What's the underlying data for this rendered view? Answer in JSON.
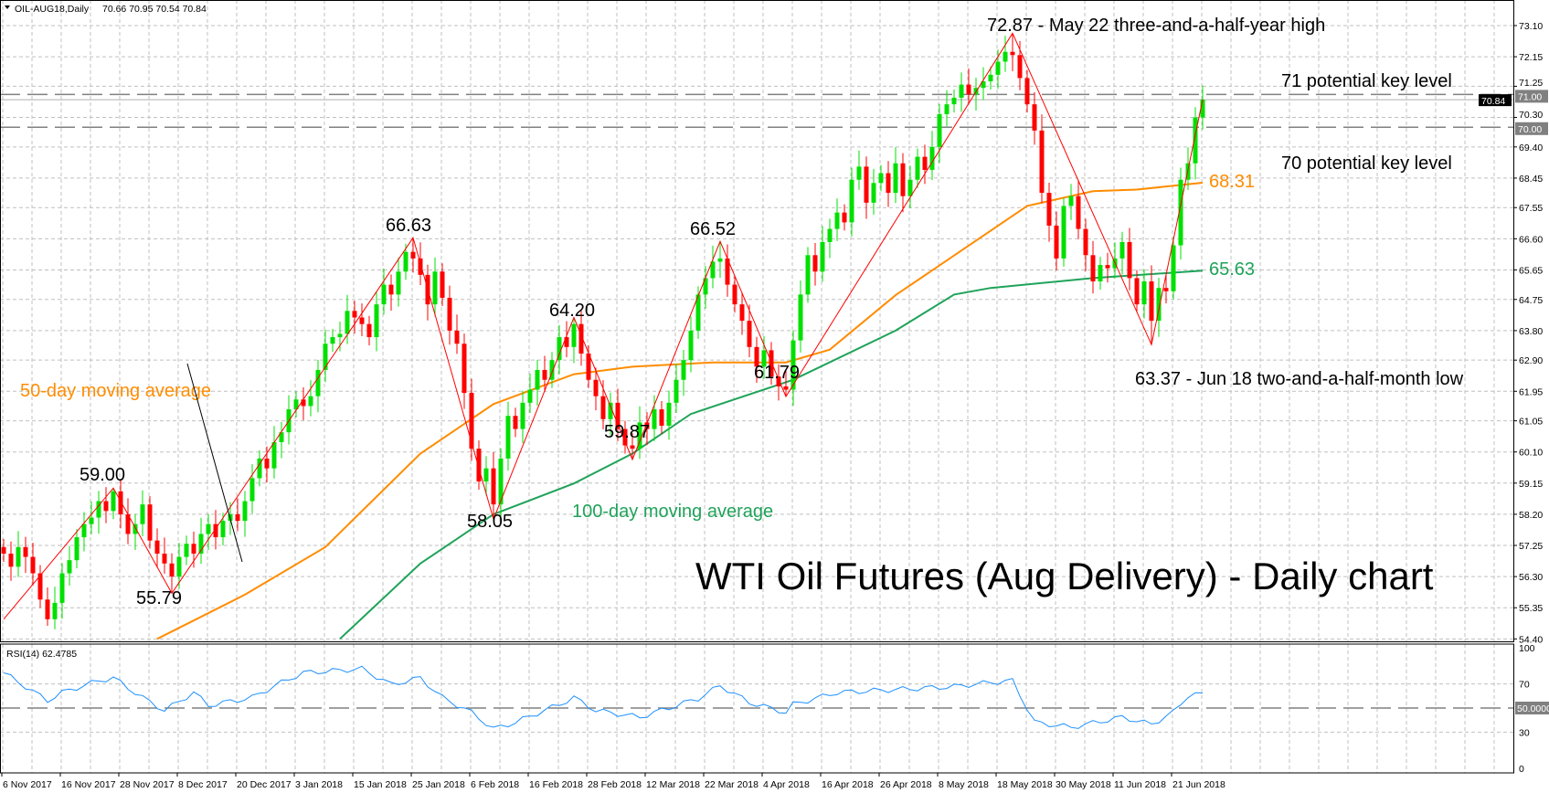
{
  "header": {
    "symbol": "OIL-AUG18,Daily",
    "ohlc": "70.66 70.95 70.54 70.84"
  },
  "colors": {
    "bull": "#00e000",
    "bear": "#ff0000",
    "ma50": "#ff8c00",
    "ma100": "#1fa35a",
    "rsi": "#1e90ff",
    "zigzag": "#ff0000"
  },
  "chart_data": [
    {
      "type": "candlestick",
      "title": "WTI Oil Futures (Aug Delivery) - Daily chart",
      "ylim": [
        54.4,
        73.1
      ],
      "y_ticks": [
        "73.10",
        "72.15",
        "71.25",
        "70.30",
        "69.40",
        "68.45",
        "67.55",
        "66.60",
        "65.65",
        "64.75",
        "63.80",
        "62.90",
        "61.95",
        "61.05",
        "60.10",
        "59.15",
        "58.20",
        "57.25",
        "56.30",
        "55.35",
        "54.40"
      ],
      "x_ticks": [
        "6 Nov 2017",
        "16 Nov 2017",
        "28 Nov 2017",
        "8 Dec 2017",
        "20 Dec 2017",
        "3 Jan 2018",
        "15 Jan 2018",
        "25 Jan 2018",
        "6 Feb 2018",
        "16 Feb 2018",
        "28 Feb 2018",
        "12 Mar 2018",
        "22 Mar 2018",
        "4 Apr 2018",
        "16 Apr 2018",
        "26 Apr 2018",
        "8 May 2018",
        "18 May 2018",
        "30 May 2018",
        "11 Jun 2018",
        "21 Jun 2018"
      ],
      "first_open": 57.2,
      "closes": [
        57.0,
        56.6,
        57.2,
        56.9,
        56.4,
        55.6,
        55.0,
        55.5,
        56.4,
        56.8,
        57.5,
        57.9,
        58.1,
        58.6,
        58.3,
        58.9,
        58.2,
        57.6,
        57.9,
        58.5,
        57.4,
        57.0,
        56.7,
        56.3,
        56.9,
        57.3,
        57.0,
        57.6,
        57.9,
        57.5,
        58.0,
        58.2,
        58.0,
        58.6,
        59.3,
        59.9,
        59.6,
        60.4,
        60.7,
        61.4,
        61.7,
        61.5,
        61.8,
        62.6,
        63.4,
        63.6,
        63.7,
        64.4,
        64.2,
        64.0,
        63.6,
        64.6,
        65.2,
        64.9,
        65.6,
        66.2,
        66.0,
        65.5,
        64.6,
        65.6,
        64.8,
        63.8,
        63.4,
        61.9,
        60.2,
        59.2,
        59.6,
        58.5,
        59.9,
        61.2,
        60.8,
        61.6,
        62.0,
        62.6,
        62.3,
        62.9,
        63.6,
        63.3,
        64.0,
        63.1,
        62.3,
        61.8,
        61.1,
        61.6,
        60.8,
        60.3,
        60.2,
        61.0,
        60.8,
        61.4,
        60.9,
        61.6,
        62.3,
        62.9,
        63.8,
        64.9,
        65.4,
        65.9,
        66.0,
        65.2,
        64.6,
        64.1,
        63.3,
        62.7,
        63.2,
        62.4,
        62.1,
        62.0,
        63.5,
        64.9,
        66.1,
        65.6,
        66.5,
        66.9,
        67.4,
        67.1,
        68.4,
        68.8,
        67.7,
        68.3,
        68.6,
        68.0,
        68.9,
        67.9,
        68.4,
        69.1,
        68.7,
        69.4,
        70.4,
        70.7,
        70.9,
        71.3,
        71.0,
        71.2,
        71.4,
        71.6,
        72.0,
        72.3,
        72.2,
        71.5,
        70.7,
        69.9,
        68.0,
        67.0,
        66.0,
        67.6,
        67.9,
        66.9,
        66.1,
        65.3,
        65.8,
        65.7,
        66.0,
        66.5,
        65.4,
        64.6,
        65.3,
        64.1,
        65.1,
        65.0,
        66.4,
        68.4,
        68.9,
        70.3,
        70.84
      ],
      "extremes": [
        [
          6,
          54.8
        ],
        [
          15,
          59.0
        ],
        [
          23,
          55.79
        ],
        [
          56,
          66.63
        ],
        [
          67,
          58.05
        ],
        [
          78,
          64.2
        ],
        [
          86,
          59.87
        ],
        [
          98,
          66.52
        ],
        [
          107,
          61.79
        ],
        [
          138,
          72.87
        ],
        [
          157,
          63.37
        ]
      ],
      "ma50": {
        "label": "50-day moving average",
        "last": "68.31",
        "points": [
          [
            21,
            54.4
          ],
          [
            33,
            55.75
          ],
          [
            44,
            57.2
          ],
          [
            57,
            60.05
          ],
          [
            67,
            61.56
          ],
          [
            78,
            62.47
          ],
          [
            86,
            62.7
          ],
          [
            97,
            62.83
          ],
          [
            107,
            62.83
          ],
          [
            113,
            63.22
          ],
          [
            122,
            64.88
          ],
          [
            130,
            66.09
          ],
          [
            140,
            67.6
          ],
          [
            149,
            68.05
          ],
          [
            155,
            68.1
          ],
          [
            164,
            68.31
          ]
        ]
      },
      "ma100": {
        "label": "100-day moving average",
        "last": "65.63",
        "points": [
          [
            46,
            54.4
          ],
          [
            57,
            56.7
          ],
          [
            67,
            58.2
          ],
          [
            78,
            59.14
          ],
          [
            86,
            60.05
          ],
          [
            94,
            61.26
          ],
          [
            108,
            62.3
          ],
          [
            122,
            63.8
          ],
          [
            130,
            64.9
          ],
          [
            135,
            65.1
          ],
          [
            149,
            65.4
          ],
          [
            164,
            65.63
          ]
        ]
      },
      "zigzag": [
        [
          0,
          55.0
        ],
        [
          15,
          59.0
        ],
        [
          23,
          55.79
        ],
        [
          56,
          66.63
        ],
        [
          67,
          58.05
        ],
        [
          78,
          64.2
        ],
        [
          86,
          59.87
        ],
        [
          98,
          66.52
        ],
        [
          107,
          61.79
        ],
        [
          138,
          72.87
        ],
        [
          157,
          63.37
        ],
        [
          164,
          70.84
        ]
      ],
      "levels": [
        {
          "value": 71,
          "tag": "71.00",
          "label": "71 potential key level"
        },
        {
          "value": 70,
          "tag": "70.00",
          "label": "70 potential key level"
        }
      ],
      "current_price_tag": "70.84",
      "annotations": {
        "high": "72.87 - May 22 three-and-a-half-year high",
        "low": "63.37 - Jun 18 two-and-a-half-month low",
        "p5900": "59.00",
        "p5579": "55.79",
        "p6663": "66.63",
        "p5805": "58.05",
        "p6420": "64.20",
        "p5987": "59.87",
        "p6652": "66.52",
        "p6179": "61.79"
      }
    },
    {
      "type": "line",
      "title": "RSI(14) 62.4785",
      "ylim": [
        0,
        100
      ],
      "y_ticks": [
        "100",
        "70",
        "30",
        "0"
      ],
      "level_tag": "50.0000",
      "points": [
        [
          0,
          79.2
        ],
        [
          6,
          56.2
        ],
        [
          8,
          62.9
        ],
        [
          13,
          72.6
        ],
        [
          15,
          75
        ],
        [
          19,
          58.7
        ],
        [
          22,
          48
        ],
        [
          26,
          62.9
        ],
        [
          28,
          52.2
        ],
        [
          34,
          58.7
        ],
        [
          38,
          71.2
        ],
        [
          41,
          79.2
        ],
        [
          49,
          82.5
        ],
        [
          53,
          69.4
        ],
        [
          57,
          75
        ],
        [
          60,
          58.7
        ],
        [
          64,
          46.4
        ],
        [
          67,
          32.6
        ],
        [
          70,
          38.2
        ],
        [
          76,
          53
        ],
        [
          78,
          58.7
        ],
        [
          81,
          48
        ],
        [
          87,
          42.4
        ],
        [
          95,
          57.9
        ],
        [
          98,
          68.6
        ],
        [
          102,
          54.6
        ],
        [
          107,
          46.4
        ],
        [
          108,
          53
        ],
        [
          114,
          62.9
        ],
        [
          122,
          65.3
        ],
        [
          130,
          67.8
        ],
        [
          135,
          71.2
        ],
        [
          138,
          72.6
        ],
        [
          141,
          38.2
        ],
        [
          146,
          34
        ],
        [
          153,
          42.4
        ],
        [
          157,
          36.5
        ],
        [
          160,
          46.4
        ],
        [
          162,
          60.4
        ],
        [
          164,
          62.5
        ]
      ]
    }
  ]
}
